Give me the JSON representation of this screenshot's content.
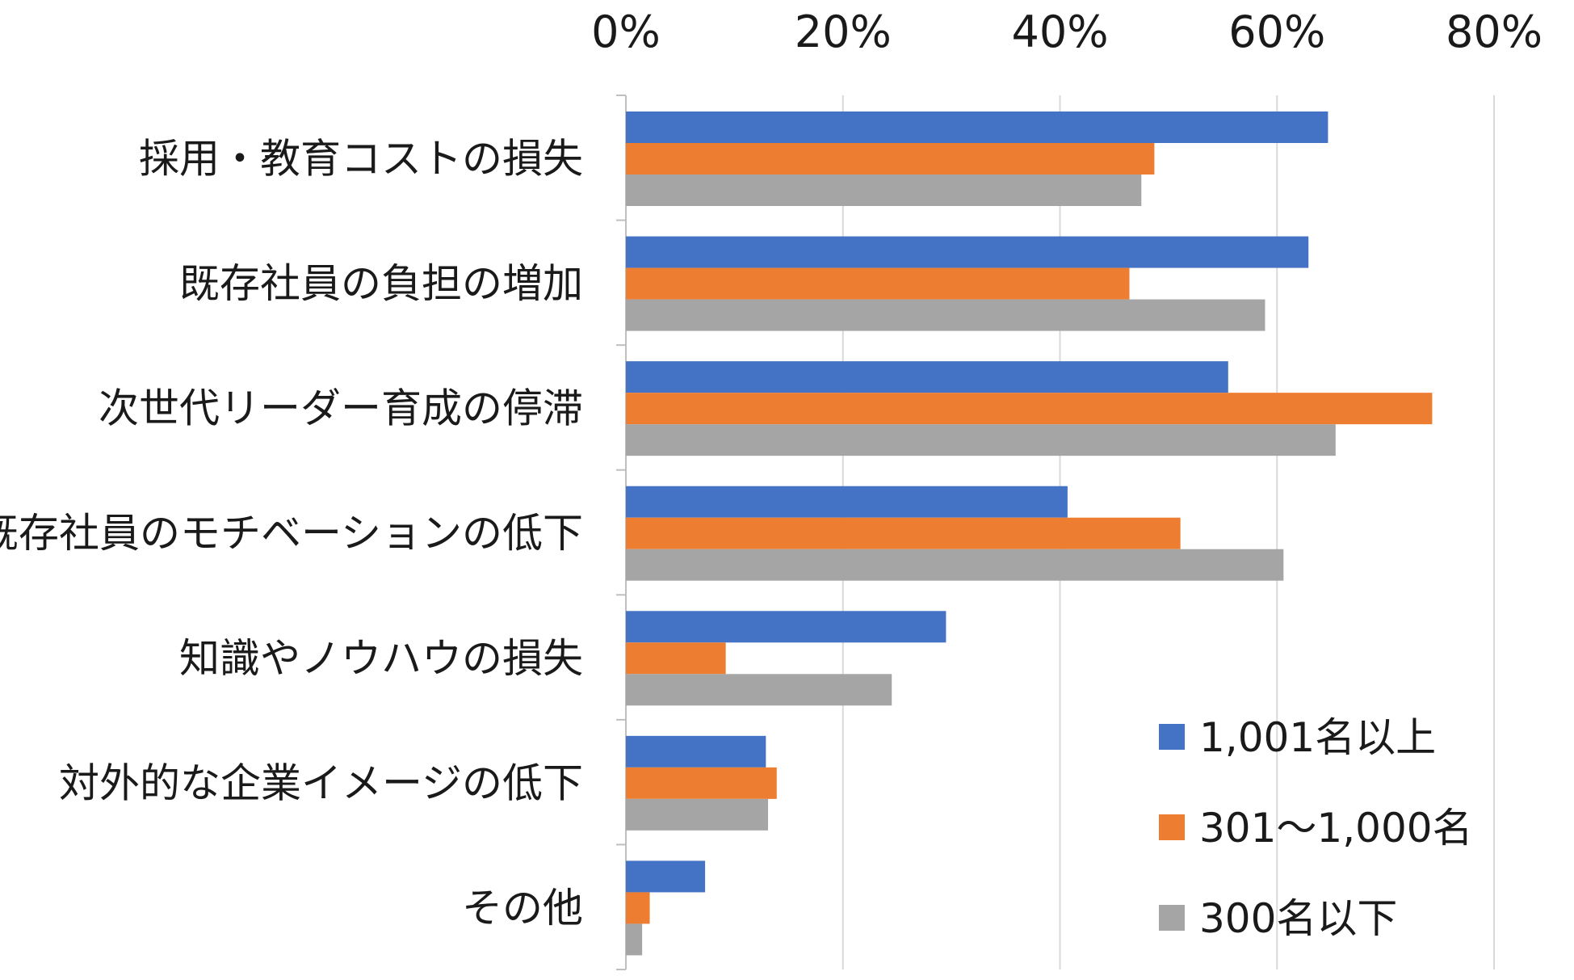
{
  "chart_data": {
    "type": "bar",
    "orientation": "horizontal",
    "title": "",
    "xlabel": "",
    "ylabel": "",
    "xlim": [
      0,
      0.8
    ],
    "x_ticks": [
      "0%",
      "20%",
      "40%",
      "60%",
      "80%"
    ],
    "x_axis_position": "top",
    "grid": true,
    "legend_position": "bottom-right",
    "categories": [
      "採用・教育コストの損失",
      "既存社員の負担の増加",
      "次世代リーダー育成の停滞",
      "既存社員のモチベーションの低下",
      "知識やノウハウの損失",
      "対外的な企業イメージの低下",
      "その他"
    ],
    "series": [
      {
        "name": "1,001名以上",
        "color": "#4472C4",
        "values": [
          0.647,
          0.629,
          0.555,
          0.407,
          0.295,
          0.129,
          0.073
        ]
      },
      {
        "name": "301～1,000名",
        "color": "#ED7D31",
        "values": [
          0.487,
          0.464,
          0.743,
          0.511,
          0.092,
          0.139,
          0.022
        ]
      },
      {
        "name": "300名以下",
        "color": "#A5A5A5",
        "values": [
          0.475,
          0.589,
          0.654,
          0.606,
          0.245,
          0.131,
          0.015
        ]
      }
    ]
  }
}
